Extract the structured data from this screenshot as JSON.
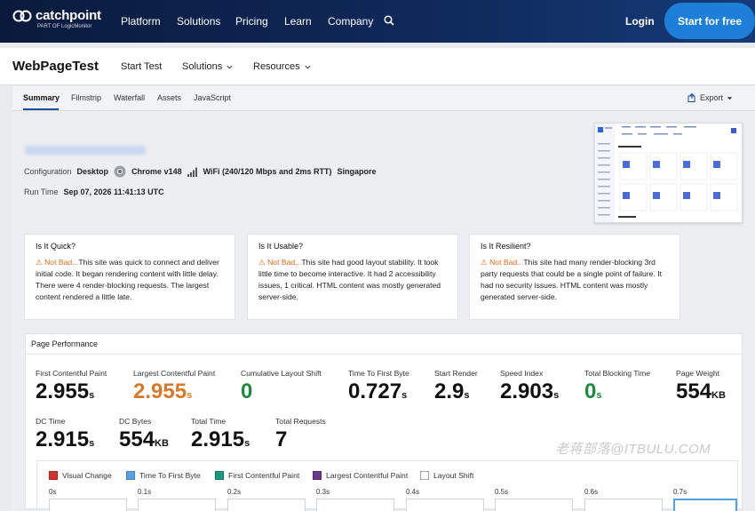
{
  "topnav": {
    "brand": "catchpoint",
    "sub": "PART OF LogicMonitor",
    "items": [
      "Platform",
      "Solutions",
      "Pricing",
      "Learn",
      "Company"
    ],
    "login": "Login",
    "cta": "Start for free"
  },
  "subnav": {
    "title": "WebPageTest",
    "items": [
      "Start Test",
      "Solutions",
      "Resources"
    ]
  },
  "tabs": [
    "Summary",
    "Filmstrip",
    "Waterfall",
    "Assets",
    "JavaScript"
  ],
  "export_label": "Export",
  "test": {
    "config_label": "Configuration",
    "device": "Desktop",
    "browser": "Chrome v148",
    "connection": "WiFi (240/120 Mbps and 2ms RTT)",
    "location": "Singapore",
    "runtime_label": "Run Time",
    "runtime": "Sep 07, 2026 11:41:13 UTC"
  },
  "cards": [
    {
      "title": "Is It Quick?",
      "status": "Not Bad...",
      "text": "This site was quick to connect and deliver initial code. It began rendering content with little delay. There were 4 render-blocking requests. The largest content rendered a little late."
    },
    {
      "title": "Is It Usable?",
      "status": "Not Bad...",
      "text": "This site had good layout stability. It took little time to become interactive. It had 2 accessibility issues, 1 critical. HTML content was mostly generated server-side."
    },
    {
      "title": "Is It Resilient?",
      "status": "Not Bad...",
      "text": "This site had many render-blocking 3rd party requests that could be a single point of failure. It had no security issues. HTML content was mostly generated server-side."
    }
  ],
  "perf": {
    "title": "Page Performance",
    "metrics": [
      {
        "label": "First Contentful Paint",
        "value": "2.955",
        "unit": "s"
      },
      {
        "label": "Largest Contentful Paint",
        "value": "2.955",
        "unit": "s"
      },
      {
        "label": "Cumulative Layout Shift",
        "value": "0",
        "unit": ""
      },
      {
        "label": "Time To First Byte",
        "value": "0.727",
        "unit": "s"
      },
      {
        "label": "Start Render",
        "value": "2.9",
        "unit": "s"
      },
      {
        "label": "Speed Index",
        "value": "2.903",
        "unit": "s"
      },
      {
        "label": "Total Blocking Time",
        "value": "0",
        "unit": "s"
      },
      {
        "label": "Page Weight",
        "value": "554",
        "unit": "KB"
      },
      {
        "label": "DC Time",
        "value": "2.915",
        "unit": "s"
      },
      {
        "label": "DC Bytes",
        "value": "554",
        "unit": "KB"
      },
      {
        "label": "Total Time",
        "value": "2.915",
        "unit": "s"
      },
      {
        "label": "Total Requests",
        "value": "7",
        "unit": ""
      }
    ]
  },
  "legend": [
    {
      "label": "Visual Change",
      "color": "#d0342c"
    },
    {
      "label": "Time To First Byte",
      "color": "#5aa0dc"
    },
    {
      "label": "First Contentful Paint",
      "color": "#1a9a7a"
    },
    {
      "label": "Largest Contentful Paint",
      "color": "#6b3b8a"
    },
    {
      "label": "Layout Shift",
      "color": "#ffffff"
    }
  ],
  "ticks": [
    "0s",
    "0.1s",
    "0.2s",
    "0.3s",
    "0.4s",
    "0.5s",
    "0.6s",
    "0.7s"
  ],
  "watermark": "老蒋部落@ITBULU.COM"
}
